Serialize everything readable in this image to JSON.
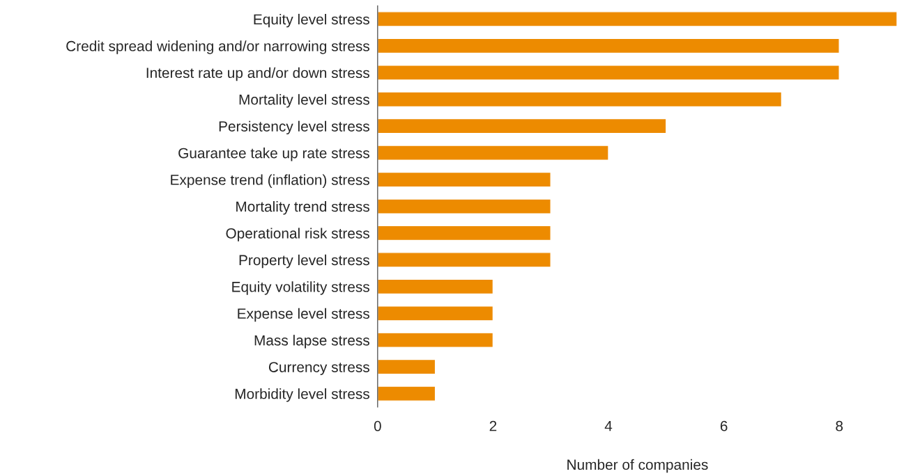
{
  "chart_data": {
    "type": "bar",
    "orientation": "horizontal",
    "xlabel": "Number of companies",
    "categories": [
      "Equity level stress",
      "Credit spread widening and/or narrowing stress",
      "Interest rate up and/or down stress",
      "Mortality level stress",
      "Persistency level stress",
      "Guarantee take up rate stress",
      "Expense trend (inflation) stress",
      "Mortality trend stress",
      "Operational risk stress",
      "Property level stress",
      "Equity volatility stress",
      "Expense level stress",
      "Mass lapse stress",
      "Currency stress",
      "Morbidity level stress"
    ],
    "values": [
      9,
      8,
      8,
      7,
      5,
      4,
      3,
      3,
      3,
      3,
      2,
      2,
      2,
      1,
      1
    ],
    "color": "#ed8b00",
    "xlim": [
      0,
      9
    ],
    "xticks": [
      0,
      2,
      4,
      6,
      8
    ],
    "grid": false,
    "legend": false
  }
}
